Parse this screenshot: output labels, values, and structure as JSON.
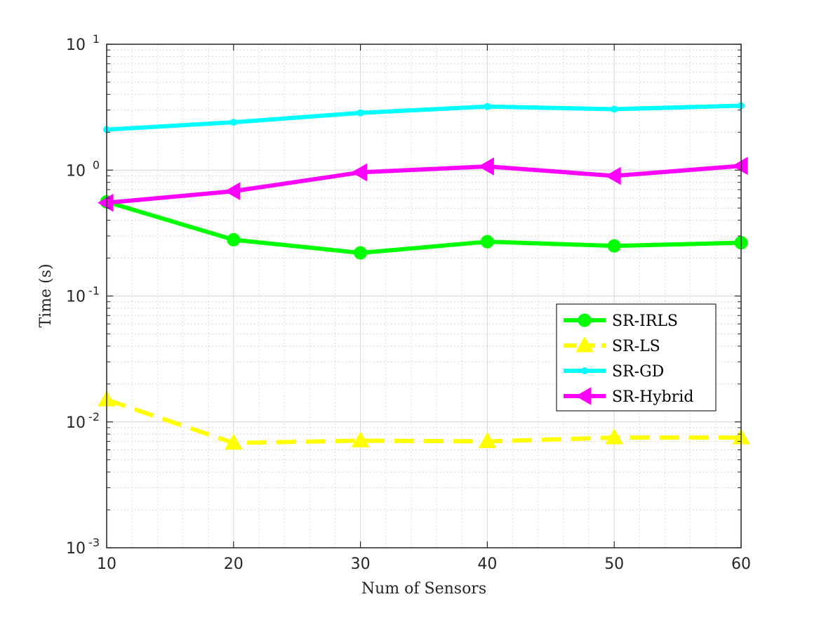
{
  "chart_data": {
    "type": "line",
    "title": "",
    "xlabel": "Num of Sensors",
    "ylabel": "Time (s)",
    "x": [
      10,
      20,
      30,
      40,
      50,
      60
    ],
    "xlim": [
      10,
      60
    ],
    "xticks": [
      "10",
      "20",
      "30",
      "40",
      "50",
      "60"
    ],
    "ylim": [
      0.001,
      10
    ],
    "yscale": "log",
    "yticks": [
      {
        "value": 0.001,
        "base": "10",
        "exp": "-3"
      },
      {
        "value": 0.01,
        "base": "10",
        "exp": "-2"
      },
      {
        "value": 0.1,
        "base": "10",
        "exp": "-1"
      },
      {
        "value": 1,
        "base": "10",
        "exp": "0"
      },
      {
        "value": 10,
        "base": "10",
        "exp": "1"
      }
    ],
    "grid": true,
    "minor_grid": true,
    "legend_position": "right",
    "series": [
      {
        "name": "SR-IRLS",
        "values": [
          0.56,
          0.28,
          0.22,
          0.27,
          0.25,
          0.265
        ],
        "color": "#00ff00",
        "marker": "circle",
        "dash": "solid"
      },
      {
        "name": "SR-LS",
        "values": [
          0.015,
          0.0068,
          0.0071,
          0.007,
          0.0075,
          0.0075
        ],
        "color": "#ffff00",
        "marker": "triangle-up",
        "dash": "dashed"
      },
      {
        "name": "SR-GD",
        "values": [
          2.1,
          2.4,
          2.85,
          3.2,
          3.05,
          3.25
        ],
        "color": "#00ffff",
        "marker": "dot",
        "dash": "solid"
      },
      {
        "name": "SR-Hybrid",
        "values": [
          0.55,
          0.68,
          0.96,
          1.07,
          0.9,
          1.08
        ],
        "color": "#ff00ff",
        "marker": "triangle-left",
        "dash": "solid"
      }
    ]
  }
}
